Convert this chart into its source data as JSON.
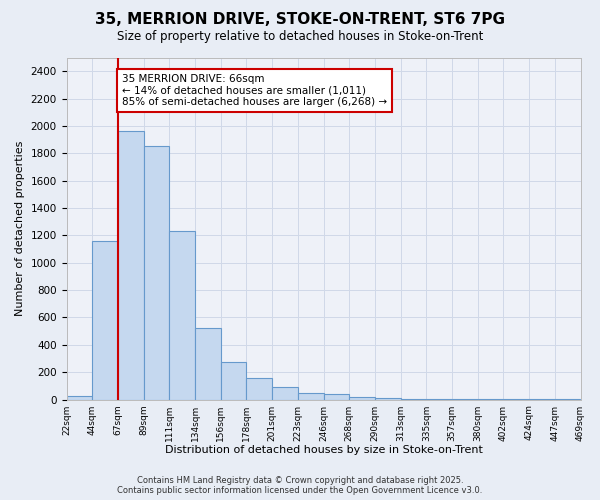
{
  "title_line1": "35, MERRION DRIVE, STOKE-ON-TRENT, ST6 7PG",
  "title_line2": "Size of property relative to detached houses in Stoke-on-Trent",
  "xlabel": "Distribution of detached houses by size in Stoke-on-Trent",
  "ylabel": "Number of detached properties",
  "bar_values": [
    25,
    1160,
    1960,
    1850,
    1230,
    520,
    275,
    155,
    90,
    45,
    40,
    20,
    10,
    5,
    3,
    2,
    2,
    1,
    1,
    1
  ],
  "bin_labels": [
    "22sqm",
    "44sqm",
    "67sqm",
    "89sqm",
    "111sqm",
    "134sqm",
    "156sqm",
    "178sqm",
    "201sqm",
    "223sqm",
    "246sqm",
    "268sqm",
    "290sqm",
    "313sqm",
    "335sqm",
    "357sqm",
    "380sqm",
    "402sqm",
    "424sqm",
    "447sqm",
    "469sqm"
  ],
  "bar_color": "#c5d8ef",
  "bar_edge_color": "#6699cc",
  "bg_color": "#e8edf5",
  "grid_color": "#d0d8e8",
  "plot_bg_color": "#eef1f8",
  "annotation_box_color": "#ffffff",
  "annotation_box_edge": "#cc0000",
  "red_line_color": "#cc0000",
  "annotation_text_line1": "35 MERRION DRIVE: 66sqm",
  "annotation_text_line2": "← 14% of detached houses are smaller (1,011)",
  "annotation_text_line3": "85% of semi-detached houses are larger (6,268) →",
  "ylim_max": 2500,
  "ytick_step": 200,
  "footer_line1": "Contains HM Land Registry data © Crown copyright and database right 2025.",
  "footer_line2": "Contains public sector information licensed under the Open Government Licence v3.0."
}
